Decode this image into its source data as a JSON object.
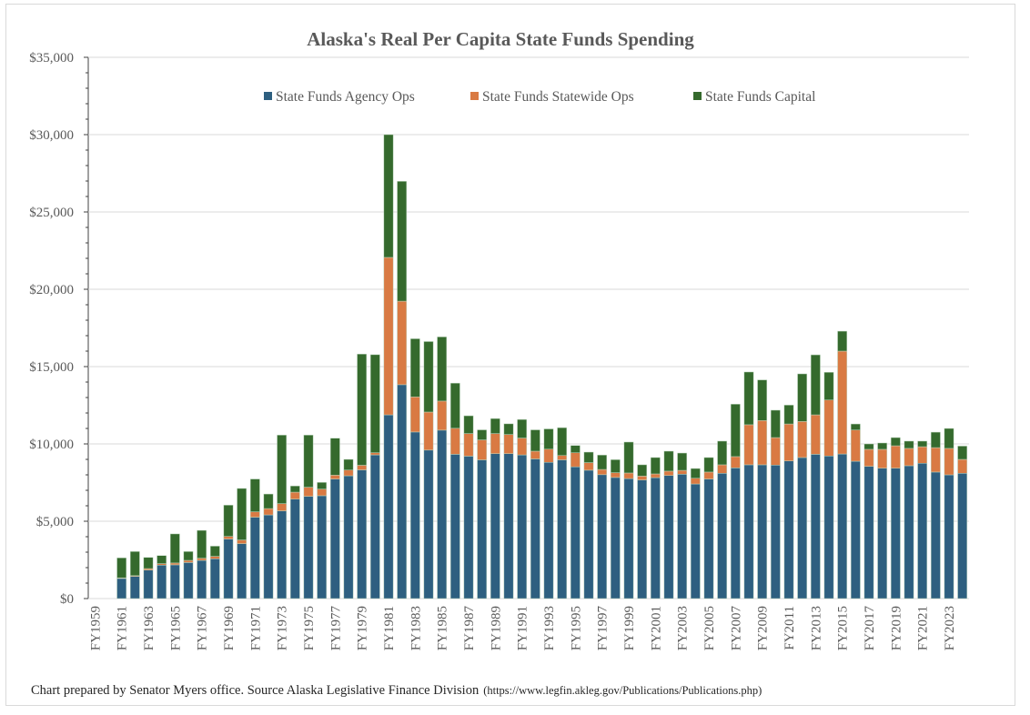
{
  "chart_data": {
    "type": "bar",
    "stacked": true,
    "title": "Alaska's Real Per Capita State Funds Spending",
    "xlabel": "",
    "ylabel": "",
    "ylim": [
      0,
      35000
    ],
    "yticks": [
      "$0",
      "$5,000",
      "$10,000",
      "$15,000",
      "$20,000",
      "$25,000",
      "$30,000",
      "$35,000"
    ],
    "ytick_values": [
      0,
      5000,
      10000,
      15000,
      20000,
      25000,
      30000,
      35000
    ],
    "grid": true,
    "legend_placement": "top",
    "categories": [
      "FY1959",
      "FY1960",
      "FY1961",
      "FY1962",
      "FY1963",
      "FY1964",
      "FY1965",
      "FY1966",
      "FY1967",
      "FY1968",
      "FY1969",
      "FY1970",
      "FY1971",
      "FY1972",
      "FY1973",
      "FY1974",
      "FY1975",
      "FY1976",
      "FY1977",
      "FY1978",
      "FY1979",
      "FY1980",
      "FY1981",
      "FY1982",
      "FY1983",
      "FY1984",
      "FY1985",
      "FY1986",
      "FY1987",
      "FY1988",
      "FY1989",
      "FY1990",
      "FY1991",
      "FY1992",
      "FY1993",
      "FY1994",
      "FY1995",
      "FY1996",
      "FY1997",
      "FY1998",
      "FY1999",
      "FY2000",
      "FY2001",
      "FY2002",
      "FY2003",
      "FY2004",
      "FY2005",
      "FY2006",
      "FY2007",
      "FY2008",
      "FY2009",
      "FY2010",
      "FY2011",
      "FY2012",
      "FY2013",
      "FY2014",
      "FY2015",
      "FY2016",
      "FY2017",
      "FY2018",
      "FY2019",
      "FY2020",
      "FY2021",
      "FY2022",
      "FY2023",
      "FY2024"
    ],
    "xtick_labels": [
      "FY1959",
      "FY1961",
      "FY1963",
      "FY1965",
      "FY1967",
      "FY1969",
      "FY1971",
      "FY1973",
      "FY1975",
      "FY1977",
      "FY1979",
      "FY1981",
      "FY1983",
      "FY1985",
      "FY1987",
      "FY1989",
      "FY1991",
      "FY1993",
      "FY1995",
      "FY1997",
      "FY1999",
      "FY2001",
      "FY2003",
      "FY2005",
      "FY2007",
      "FY2009",
      "FY2011",
      "FY2013",
      "FY2015",
      "FY2017",
      "FY2019",
      "FY2021",
      "FY2023"
    ],
    "series": [
      {
        "name": "State Funds Agency Ops",
        "color": "#2e5f80",
        "values": [
          0,
          0,
          1300,
          1430,
          1840,
          2160,
          2180,
          2330,
          2470,
          2570,
          3850,
          3550,
          5260,
          5410,
          5670,
          6430,
          6610,
          6650,
          7730,
          7940,
          8320,
          9290,
          11880,
          13830,
          10770,
          9600,
          10890,
          9330,
          9210,
          8970,
          9370,
          9370,
          9290,
          9030,
          8810,
          8970,
          8520,
          8300,
          8010,
          7830,
          7760,
          7670,
          7820,
          7960,
          8040,
          7410,
          7730,
          8100,
          8450,
          8650,
          8650,
          8630,
          8900,
          9120,
          9330,
          9220,
          9350,
          8880,
          8550,
          8430,
          8430,
          8590,
          8750,
          8180,
          8000,
          8100
        ]
      },
      {
        "name": "State Funds Statewide Ops",
        "color": "#d97a43",
        "values": [
          0,
          0,
          40,
          50,
          100,
          100,
          120,
          140,
          140,
          160,
          170,
          240,
          350,
          410,
          470,
          450,
          590,
          430,
          250,
          370,
          300,
          140,
          10180,
          5400,
          2270,
          2460,
          1880,
          1680,
          1460,
          1290,
          1300,
          1240,
          1090,
          500,
          850,
          280,
          910,
          490,
          340,
          310,
          360,
          250,
          240,
          280,
          250,
          370,
          450,
          550,
          730,
          2590,
          2860,
          1780,
          2390,
          2330,
          2550,
          3620,
          6650,
          2020,
          1100,
          1220,
          1450,
          1120,
          1070,
          1580,
          1710,
          900
        ]
      },
      {
        "name": "State Funds Capital",
        "color": "#356a2d",
        "values": [
          0,
          0,
          1290,
          1560,
          720,
          520,
          1880,
          570,
          1800,
          660,
          2020,
          3330,
          2120,
          940,
          4430,
          400,
          3370,
          430,
          2390,
          690,
          7190,
          6340,
          7940,
          7750,
          3760,
          4560,
          4150,
          2920,
          1150,
          650,
          970,
          690,
          1200,
          1380,
          1310,
          1800,
          470,
          680,
          930,
          840,
          2000,
          730,
          1060,
          1290,
          1120,
          630,
          940,
          1530,
          3390,
          3410,
          2630,
          1770,
          1220,
          3080,
          3880,
          1790,
          1290,
          390,
          350,
          410,
          530,
          470,
          360,
          1000,
          1290,
          860
        ]
      }
    ]
  },
  "footer": {
    "note": "Chart prepared by Senator Myers office. Source Alaska Legislative Finance Division",
    "url": "(https://www.legfin.akleg.gov/Publications/Publications.php)"
  }
}
